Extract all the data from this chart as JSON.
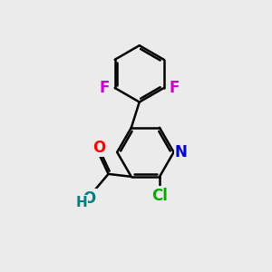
{
  "background_color": "#ebebeb",
  "bond_color": "#000000",
  "bond_width": 1.8,
  "atom_labels": {
    "N": {
      "color": "#0000cc"
    },
    "O_carbonyl": {
      "color": "#ff0000"
    },
    "O_hydroxyl": {
      "color": "#008080"
    },
    "H": {
      "color": "#008080"
    },
    "Cl": {
      "color": "#00aa00"
    },
    "F": {
      "color": "#cc00cc"
    }
  },
  "fontsize": 12
}
